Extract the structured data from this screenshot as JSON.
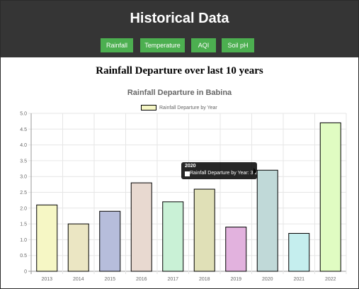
{
  "header": {
    "title": "Historical Data",
    "nav": [
      {
        "label": "Rainfall"
      },
      {
        "label": "Temperature"
      },
      {
        "label": "AQI"
      },
      {
        "label": "Soil pH"
      }
    ]
  },
  "page_heading": "Rainfall Departure over last 10 years",
  "tooltip": {
    "title": "2020",
    "body": "Rainfall Departure by Year: 3.2"
  },
  "colors": {
    "header_bg": "#353535",
    "nav_button": "#4caf50"
  },
  "chart_data": {
    "type": "bar",
    "title": "Rainfall Departure in Babina",
    "legend": {
      "position": "top"
    },
    "categories": [
      "2013",
      "2014",
      "2015",
      "2016",
      "2017",
      "2018",
      "2019",
      "2020",
      "2021",
      "2022"
    ],
    "series": [
      {
        "name": "Rainfall Departure by Year",
        "values": [
          2.1,
          1.5,
          1.9,
          2.8,
          2.2,
          2.6,
          1.4,
          3.2,
          1.2,
          4.7
        ],
        "colors": [
          "#f6f7c5",
          "#ebe6c3",
          "#b6bddb",
          "#e8d9d0",
          "#c9f1d6",
          "#e0e0b7",
          "#e2b2de",
          "#c0d9d8",
          "#c5eeee",
          "#e0fcc2"
        ]
      }
    ],
    "ylim": [
      0,
      5.0
    ],
    "yticks": [
      "0",
      "0.5",
      "1.0",
      "1.5",
      "2.0",
      "2.5",
      "3.0",
      "3.5",
      "4.0",
      "4.5",
      "5.0"
    ],
    "grid": true
  }
}
